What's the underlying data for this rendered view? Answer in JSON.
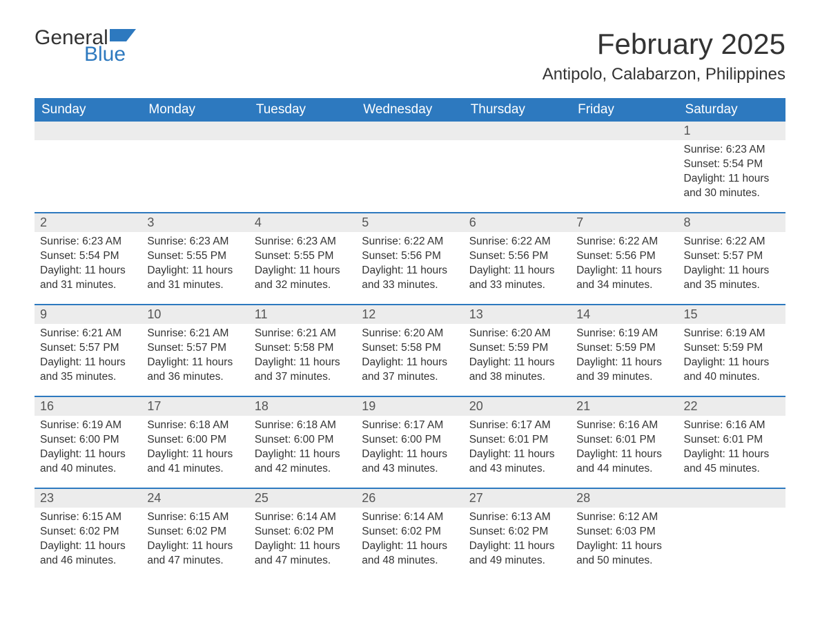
{
  "brand": {
    "general": "General",
    "blue": "Blue",
    "flag_color": "#2d79bf"
  },
  "title": "February 2025",
  "location": "Antipolo, Calabarzon, Philippines",
  "colors": {
    "header_bg": "#2d79bf",
    "header_text": "#ffffff",
    "daynum_bg": "#ececec",
    "text": "#333333",
    "page_bg": "#ffffff"
  },
  "typography": {
    "title_fontsize": 42,
    "location_fontsize": 24,
    "dayheader_fontsize": 19,
    "daynum_fontsize": 18,
    "body_fontsize": 15.5
  },
  "day_headers": [
    "Sunday",
    "Monday",
    "Tuesday",
    "Wednesday",
    "Thursday",
    "Friday",
    "Saturday"
  ],
  "weeks": [
    [
      null,
      null,
      null,
      null,
      null,
      null,
      {
        "n": "1",
        "sunrise": "Sunrise: 6:23 AM",
        "sunset": "Sunset: 5:54 PM",
        "daylight": "Daylight: 11 hours and 30 minutes."
      }
    ],
    [
      {
        "n": "2",
        "sunrise": "Sunrise: 6:23 AM",
        "sunset": "Sunset: 5:54 PM",
        "daylight": "Daylight: 11 hours and 31 minutes."
      },
      {
        "n": "3",
        "sunrise": "Sunrise: 6:23 AM",
        "sunset": "Sunset: 5:55 PM",
        "daylight": "Daylight: 11 hours and 31 minutes."
      },
      {
        "n": "4",
        "sunrise": "Sunrise: 6:23 AM",
        "sunset": "Sunset: 5:55 PM",
        "daylight": "Daylight: 11 hours and 32 minutes."
      },
      {
        "n": "5",
        "sunrise": "Sunrise: 6:22 AM",
        "sunset": "Sunset: 5:56 PM",
        "daylight": "Daylight: 11 hours and 33 minutes."
      },
      {
        "n": "6",
        "sunrise": "Sunrise: 6:22 AM",
        "sunset": "Sunset: 5:56 PM",
        "daylight": "Daylight: 11 hours and 33 minutes."
      },
      {
        "n": "7",
        "sunrise": "Sunrise: 6:22 AM",
        "sunset": "Sunset: 5:56 PM",
        "daylight": "Daylight: 11 hours and 34 minutes."
      },
      {
        "n": "8",
        "sunrise": "Sunrise: 6:22 AM",
        "sunset": "Sunset: 5:57 PM",
        "daylight": "Daylight: 11 hours and 35 minutes."
      }
    ],
    [
      {
        "n": "9",
        "sunrise": "Sunrise: 6:21 AM",
        "sunset": "Sunset: 5:57 PM",
        "daylight": "Daylight: 11 hours and 35 minutes."
      },
      {
        "n": "10",
        "sunrise": "Sunrise: 6:21 AM",
        "sunset": "Sunset: 5:57 PM",
        "daylight": "Daylight: 11 hours and 36 minutes."
      },
      {
        "n": "11",
        "sunrise": "Sunrise: 6:21 AM",
        "sunset": "Sunset: 5:58 PM",
        "daylight": "Daylight: 11 hours and 37 minutes."
      },
      {
        "n": "12",
        "sunrise": "Sunrise: 6:20 AM",
        "sunset": "Sunset: 5:58 PM",
        "daylight": "Daylight: 11 hours and 37 minutes."
      },
      {
        "n": "13",
        "sunrise": "Sunrise: 6:20 AM",
        "sunset": "Sunset: 5:59 PM",
        "daylight": "Daylight: 11 hours and 38 minutes."
      },
      {
        "n": "14",
        "sunrise": "Sunrise: 6:19 AM",
        "sunset": "Sunset: 5:59 PM",
        "daylight": "Daylight: 11 hours and 39 minutes."
      },
      {
        "n": "15",
        "sunrise": "Sunrise: 6:19 AM",
        "sunset": "Sunset: 5:59 PM",
        "daylight": "Daylight: 11 hours and 40 minutes."
      }
    ],
    [
      {
        "n": "16",
        "sunrise": "Sunrise: 6:19 AM",
        "sunset": "Sunset: 6:00 PM",
        "daylight": "Daylight: 11 hours and 40 minutes."
      },
      {
        "n": "17",
        "sunrise": "Sunrise: 6:18 AM",
        "sunset": "Sunset: 6:00 PM",
        "daylight": "Daylight: 11 hours and 41 minutes."
      },
      {
        "n": "18",
        "sunrise": "Sunrise: 6:18 AM",
        "sunset": "Sunset: 6:00 PM",
        "daylight": "Daylight: 11 hours and 42 minutes."
      },
      {
        "n": "19",
        "sunrise": "Sunrise: 6:17 AM",
        "sunset": "Sunset: 6:00 PM",
        "daylight": "Daylight: 11 hours and 43 minutes."
      },
      {
        "n": "20",
        "sunrise": "Sunrise: 6:17 AM",
        "sunset": "Sunset: 6:01 PM",
        "daylight": "Daylight: 11 hours and 43 minutes."
      },
      {
        "n": "21",
        "sunrise": "Sunrise: 6:16 AM",
        "sunset": "Sunset: 6:01 PM",
        "daylight": "Daylight: 11 hours and 44 minutes."
      },
      {
        "n": "22",
        "sunrise": "Sunrise: 6:16 AM",
        "sunset": "Sunset: 6:01 PM",
        "daylight": "Daylight: 11 hours and 45 minutes."
      }
    ],
    [
      {
        "n": "23",
        "sunrise": "Sunrise: 6:15 AM",
        "sunset": "Sunset: 6:02 PM",
        "daylight": "Daylight: 11 hours and 46 minutes."
      },
      {
        "n": "24",
        "sunrise": "Sunrise: 6:15 AM",
        "sunset": "Sunset: 6:02 PM",
        "daylight": "Daylight: 11 hours and 47 minutes."
      },
      {
        "n": "25",
        "sunrise": "Sunrise: 6:14 AM",
        "sunset": "Sunset: 6:02 PM",
        "daylight": "Daylight: 11 hours and 47 minutes."
      },
      {
        "n": "26",
        "sunrise": "Sunrise: 6:14 AM",
        "sunset": "Sunset: 6:02 PM",
        "daylight": "Daylight: 11 hours and 48 minutes."
      },
      {
        "n": "27",
        "sunrise": "Sunrise: 6:13 AM",
        "sunset": "Sunset: 6:02 PM",
        "daylight": "Daylight: 11 hours and 49 minutes."
      },
      {
        "n": "28",
        "sunrise": "Sunrise: 6:12 AM",
        "sunset": "Sunset: 6:03 PM",
        "daylight": "Daylight: 11 hours and 50 minutes."
      },
      null
    ]
  ]
}
